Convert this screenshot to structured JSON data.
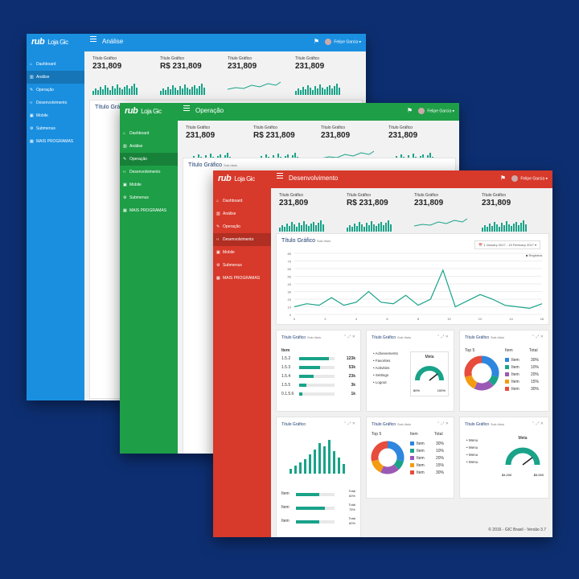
{
  "brand": {
    "logo": "rub",
    "store": "Loja Gic"
  },
  "user": {
    "name": "Felipe Garcia"
  },
  "nav": [
    "Dashboard",
    "Análise",
    "Operação",
    "Desenvolvimento",
    "Mobile",
    "Submenus",
    "MAIS PROGRAMAS"
  ],
  "windows": [
    {
      "title": "Análise",
      "color": "#1a8fe0"
    },
    {
      "title": "Operação",
      "color": "#1e9e46"
    },
    {
      "title": "Desenvolvimento",
      "color": "#d7392a"
    }
  ],
  "stats": [
    {
      "label": "Título Gráfico",
      "value": "231,809"
    },
    {
      "label": "Título Gráfico",
      "value": "R$ 231,809"
    },
    {
      "label": "Título Gráfico",
      "value": "231,809"
    },
    {
      "label": "Título Gráfico",
      "value": "231,809"
    }
  ],
  "main_chart": {
    "title": "Título Gráfico",
    "subtitle": "Sub-título",
    "date_range": "1 January 2017 - 15 February 2017",
    "legend": "Registros",
    "x_ticks": [
      "0",
      "2",
      "4",
      "6",
      "8",
      "10",
      "12",
      "14",
      "16"
    ],
    "y_ticks": [
      "0",
      "10",
      "20",
      "30",
      "40",
      "50",
      "60",
      "70",
      "80"
    ]
  },
  "list_panel": {
    "title": "Título Gráfico",
    "subtitle": "Sub-título",
    "header": "Item",
    "rows": [
      {
        "label": "1.5.2",
        "value": "123k",
        "fill": 0.85
      },
      {
        "label": "1.5.3",
        "value": "53k",
        "fill": 0.6
      },
      {
        "label": "1.5.4",
        "value": "23k",
        "fill": 0.4
      },
      {
        "label": "1.5.5",
        "value": "3k",
        "fill": 0.2
      },
      {
        "label": "0.1.5.6",
        "value": "1k",
        "fill": 0.1
      }
    ]
  },
  "menu_panel": {
    "title": "Título Gráfico",
    "subtitle": "Sub-título",
    "items": [
      "Achievements",
      "Favorites",
      "Activities",
      "Settings",
      "Logout"
    ],
    "gauge_label": "Meta",
    "min": "80%",
    "max": "100%"
  },
  "donut_panel": {
    "title": "Título Gráfico",
    "subtitle": "Sub-título",
    "top": "Top 5",
    "col_item": "Item",
    "col_total": "Total",
    "rows": [
      {
        "item": "Item",
        "total": "30%",
        "color": "#2e86de"
      },
      {
        "item": "Item",
        "total": "10%",
        "color": "#19a389"
      },
      {
        "item": "Item",
        "total": "20%",
        "color": "#9b59b6"
      },
      {
        "item": "Item",
        "total": "15%",
        "color": "#f39c12"
      },
      {
        "item": "Item",
        "total": "30%",
        "color": "#e74c3c"
      }
    ]
  },
  "bottom_bar_panel": {
    "title": "Título Gráfico",
    "rows": [
      {
        "label": "Item",
        "total_label": "Total",
        "total": "60%",
        "fill": 0.6
      },
      {
        "label": "Item",
        "total_label": "Total",
        "total": "75%",
        "fill": 0.75
      },
      {
        "label": "Item",
        "total_label": "Total",
        "total": "60%",
        "fill": 0.6
      }
    ]
  },
  "bottom_donut_panel": {
    "title": "Título Gráfico",
    "subtitle": "Sub-título",
    "top": "Top 5",
    "col_item": "Item",
    "col_total": "Total",
    "rows": [
      {
        "item": "Item",
        "total": "30%"
      },
      {
        "item": "Item",
        "total": "10%"
      },
      {
        "item": "Item",
        "total": "20%"
      },
      {
        "item": "Item",
        "total": "15%"
      },
      {
        "item": "Item",
        "total": "30%"
      }
    ]
  },
  "bottom_menu_panel": {
    "title": "Título Gráfico",
    "subtitle": "Sub-título",
    "items": [
      "Menu",
      "Menu",
      "Menu",
      "Menu"
    ],
    "gauge_label": "Meta",
    "min": "$4,200",
    "max": "$5,000"
  },
  "footer": "© 2016 - GIC Brasil - Versão 3.7"
}
